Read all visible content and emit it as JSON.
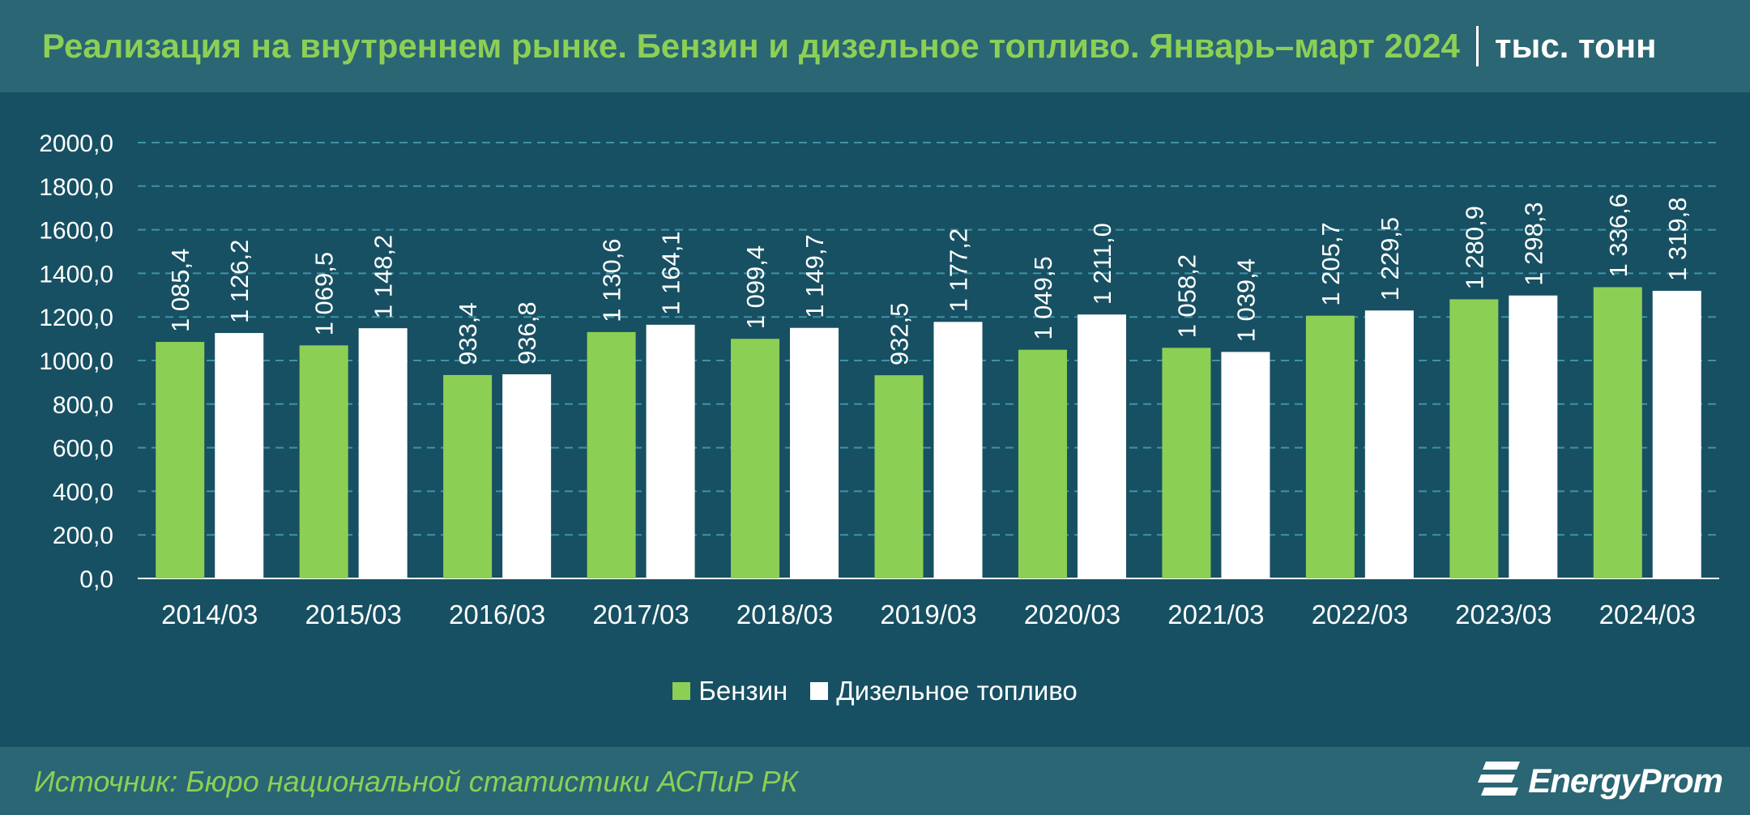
{
  "header": {
    "title": "Реализация на внутреннем рынке. Бензин и дизельное топливо. Январь–март 2024",
    "unit": "тыс. тонн"
  },
  "footer": {
    "source": "Источник: Бюро национальной статистики АСПиР РК",
    "logo_text": "EnergyProm",
    "logo_icon": "energyprom-logo-icon"
  },
  "colors": {
    "header_bg": "#2a6674",
    "chart_bg": "#175062",
    "title": "#8ccf55",
    "benzin": "#8ccf55",
    "diesel": "#ffffff",
    "grid": "#3f93a8"
  },
  "chart_data": {
    "type": "bar",
    "title": "Реализация на внутреннем рынке. Бензин и дизельное топливо. Январь–март 2024",
    "ylabel": "",
    "xlabel": "",
    "ylim": [
      0,
      2000
    ],
    "yticks": [
      "0,0",
      "200,0",
      "400,0",
      "600,0",
      "800,0",
      "1000,0",
      "1200,0",
      "1400,0",
      "1600,0",
      "1800,0",
      "2000,0"
    ],
    "grid": true,
    "legend": "bottom-center",
    "categories": [
      "2014/03",
      "2015/03",
      "2016/03",
      "2017/03",
      "2018/03",
      "2019/03",
      "2020/03",
      "2021/03",
      "2022/03",
      "2023/03",
      "2024/03"
    ],
    "series": [
      {
        "name": "Бензин",
        "values": [
          1085.4,
          1069.5,
          933.4,
          1130.6,
          1099.4,
          932.5,
          1049.5,
          1058.2,
          1205.7,
          1280.9,
          1336.6
        ],
        "labels": [
          "1 085,4",
          "1 069,5",
          "933,4",
          "1 130,6",
          "1 099,4",
          "932,5",
          "1 049,5",
          "1 058,2",
          "1 205,7",
          "1 280,9",
          "1 336,6"
        ]
      },
      {
        "name": "Дизельное топливо",
        "values": [
          1126.2,
          1148.2,
          936.8,
          1164.1,
          1149.7,
          1177.2,
          1211.0,
          1039.4,
          1229.5,
          1298.3,
          1319.8
        ],
        "labels": [
          "1 126,2",
          "1 148,2",
          "936,8",
          "1 164,1",
          "1 149,7",
          "1 177,2",
          "1 211,0",
          "1 039,4",
          "1 229,5",
          "1 298,3",
          "1 319,8"
        ]
      }
    ]
  }
}
